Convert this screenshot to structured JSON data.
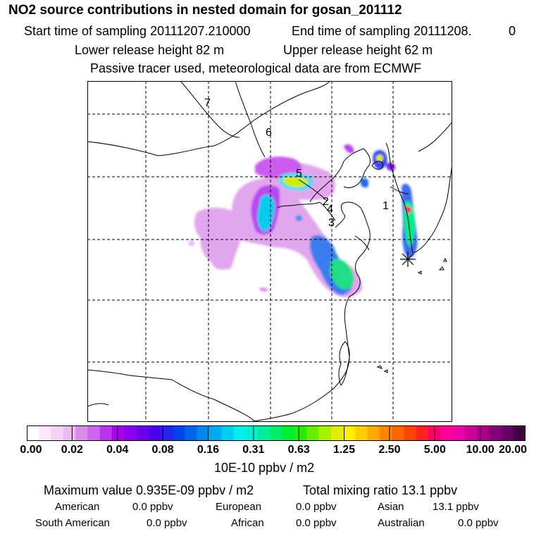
{
  "header": {
    "title": "NO2 source contributions in nested domain for gosan_201112",
    "start_time": "Start time of sampling 20111207.210000",
    "end_time": "End time of sampling 20111208.",
    "end_time_suffix": "0",
    "lower_release": "Lower release height   82 m",
    "upper_release": "Upper release height   62 m",
    "tracer_note": "Passive tracer used, meteorological data are from ECMWF"
  },
  "map": {
    "point_labels": [
      "7",
      "6",
      "5",
      "2",
      "4",
      "3",
      "1"
    ],
    "receptor_marker": "receptor-asterisk"
  },
  "colorbar": {
    "ticks": [
      "0.00",
      "0.02",
      "0.04",
      "0.08",
      "0.16",
      "0.31",
      "0.63",
      "1.25",
      "2.50",
      "5.00",
      "10.00",
      "20.00"
    ],
    "units": "10E-10 ppbv / m2",
    "colors": [
      "#ffffff",
      "#fbe6fb",
      "#f5d0f5",
      "#efbaef",
      "#d98be6",
      "#cc66ee",
      "#bb33ee",
      "#aa00ee",
      "#8a00ee",
      "#6a00ee",
      "#4a00ee",
      "#2a22ee",
      "#0044ee",
      "#0066ee",
      "#0088ee",
      "#00aaee",
      "#00ccee",
      "#00eeee",
      "#00eecc",
      "#00ee99",
      "#00ee66",
      "#00ee33",
      "#22ee00",
      "#66ee00",
      "#aaee00",
      "#ddee00",
      "#ffee00",
      "#ffcc00",
      "#ffaa00",
      "#ff8800",
      "#ff6600",
      "#ff4400",
      "#ff2222",
      "#ff0066",
      "#ff0099",
      "#ee00aa",
      "#cc0099",
      "#aa0088",
      "#880077",
      "#660066",
      "#440044"
    ]
  },
  "stats": {
    "max_label": "Maximum value  0.935E-09 ppbv / m2",
    "total_label": "Total mixing ratio      13.1 ppbv",
    "rows": [
      [
        [
          "American",
          "0.0 ppbv"
        ],
        [
          "European",
          "0.0 ppbv"
        ],
        [
          "Asian",
          "13.1 ppbv"
        ]
      ],
      [
        [
          "South American",
          "0.0 ppbv"
        ],
        [
          "African",
          "0.0 ppbv"
        ],
        [
          "Australian",
          "0.0 ppbv"
        ]
      ]
    ]
  }
}
